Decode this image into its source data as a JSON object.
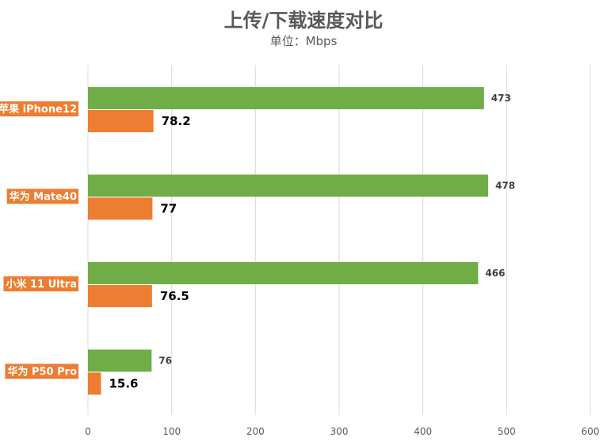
{
  "chart_data": {
    "type": "bar",
    "orientation": "horizontal",
    "title": "上传/下载速度对比",
    "subtitle": "单位：Mbps",
    "categories": [
      "苹果 iPhone12",
      "华为 Mate40",
      "小米 11 Ultra",
      "华为 P50 Pro"
    ],
    "series": [
      {
        "values": [
          473,
          478,
          466,
          76
        ],
        "color": "#70ad47"
      },
      {
        "values": [
          78.2,
          77,
          76.5,
          15.6
        ],
        "color": "#ed7d31"
      }
    ],
    "xlim": [
      0,
      600
    ],
    "xticks": [
      0,
      100,
      200,
      300,
      400,
      500,
      600
    ],
    "grid": true,
    "legend": "none",
    "category_label_bg": "#ed7d31"
  }
}
